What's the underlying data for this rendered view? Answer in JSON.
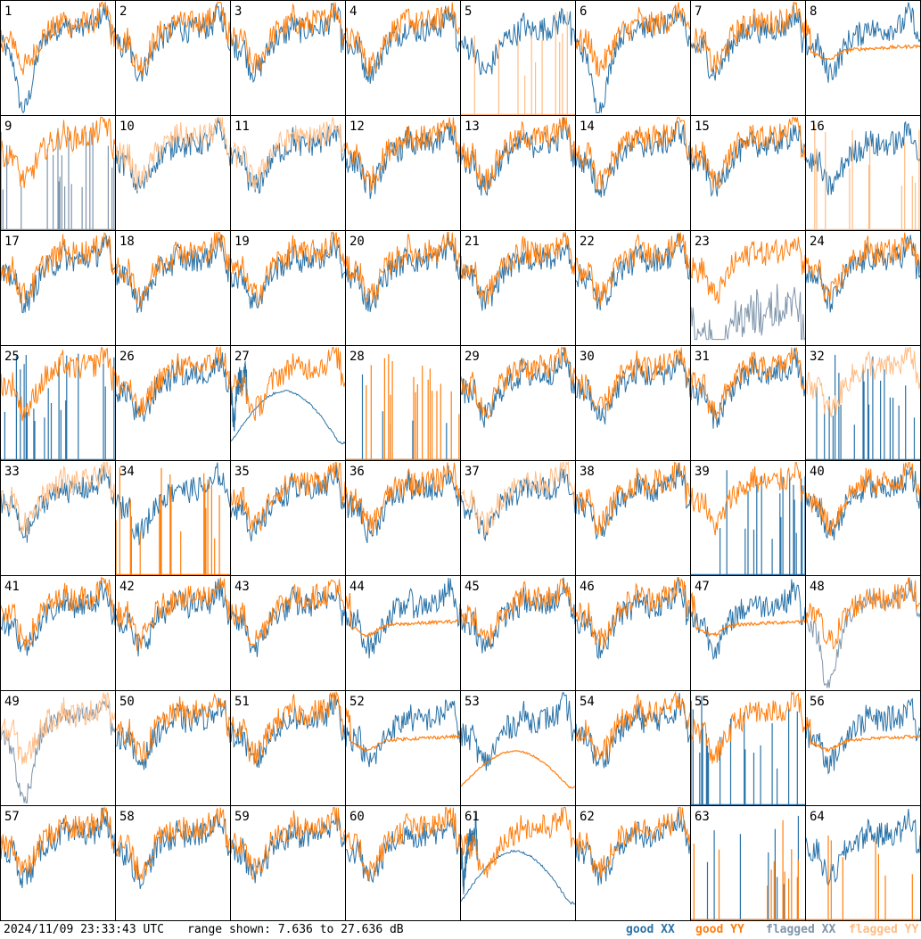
{
  "chart_data": {
    "type": "line",
    "grid": {
      "rows": 8,
      "cols": 8
    },
    "panels": [
      {
        "label": "1",
        "xx": "good",
        "yy": "good",
        "shape": "dip"
      },
      {
        "label": "2",
        "xx": "good",
        "yy": "good",
        "shape": "normal"
      },
      {
        "label": "3",
        "xx": "good",
        "yy": "good",
        "shape": "normal"
      },
      {
        "label": "4",
        "xx": "good",
        "yy": "good",
        "shape": "normal"
      },
      {
        "label": "5",
        "xx": "good",
        "yy": "flagged",
        "shape": "spikes_yy"
      },
      {
        "label": "6",
        "xx": "good",
        "yy": "good",
        "shape": "dip"
      },
      {
        "label": "7",
        "xx": "good",
        "yy": "good",
        "shape": "normal"
      },
      {
        "label": "8",
        "xx": "good",
        "yy": "good",
        "shape": "smooth_yy"
      },
      {
        "label": "9",
        "xx": "flagged",
        "yy": "good",
        "shape": "spikes_xx"
      },
      {
        "label": "10",
        "xx": "good",
        "yy": "flagged",
        "shape": "normal"
      },
      {
        "label": "11",
        "xx": "good",
        "yy": "flagged",
        "shape": "normal"
      },
      {
        "label": "12",
        "xx": "good",
        "yy": "good",
        "shape": "normal"
      },
      {
        "label": "13",
        "xx": "good",
        "yy": "good",
        "shape": "normal"
      },
      {
        "label": "14",
        "xx": "good",
        "yy": "good",
        "shape": "normal"
      },
      {
        "label": "15",
        "xx": "good",
        "yy": "good",
        "shape": "normal"
      },
      {
        "label": "16",
        "xx": "good",
        "yy": "flagged",
        "shape": "spikes_yy"
      },
      {
        "label": "17",
        "xx": "good",
        "yy": "good",
        "shape": "normal"
      },
      {
        "label": "18",
        "xx": "good",
        "yy": "good",
        "shape": "normal"
      },
      {
        "label": "19",
        "xx": "good",
        "yy": "good",
        "shape": "normal"
      },
      {
        "label": "20",
        "xx": "good",
        "yy": "good",
        "shape": "normal"
      },
      {
        "label": "21",
        "xx": "good",
        "yy": "good",
        "shape": "normal"
      },
      {
        "label": "22",
        "xx": "good",
        "yy": "good",
        "shape": "normal"
      },
      {
        "label": "23",
        "xx": "flagged",
        "yy": "good",
        "shape": "noisy_xx"
      },
      {
        "label": "24",
        "xx": "good",
        "yy": "good",
        "shape": "normal"
      },
      {
        "label": "25",
        "xx": "good",
        "yy": "good",
        "shape": "spikes_xx"
      },
      {
        "label": "26",
        "xx": "good",
        "yy": "good",
        "shape": "normal"
      },
      {
        "label": "27",
        "xx": "good",
        "yy": "good",
        "shape": "arc_xx"
      },
      {
        "label": "28",
        "xx": "good",
        "yy": "good",
        "shape": "dead"
      },
      {
        "label": "29",
        "xx": "good",
        "yy": "good",
        "shape": "normal"
      },
      {
        "label": "30",
        "xx": "good",
        "yy": "good",
        "shape": "normal"
      },
      {
        "label": "31",
        "xx": "good",
        "yy": "good",
        "shape": "normal"
      },
      {
        "label": "32",
        "xx": "good",
        "yy": "flagged",
        "shape": "spikes_xx"
      },
      {
        "label": "33",
        "xx": "good",
        "yy": "flagged",
        "shape": "normal"
      },
      {
        "label": "34",
        "xx": "good",
        "yy": "good",
        "shape": "spikes_yy"
      },
      {
        "label": "35",
        "xx": "good",
        "yy": "good",
        "shape": "normal"
      },
      {
        "label": "36",
        "xx": "good",
        "yy": "good",
        "shape": "normal"
      },
      {
        "label": "37",
        "xx": "good",
        "yy": "flagged",
        "shape": "normal"
      },
      {
        "label": "38",
        "xx": "good",
        "yy": "good",
        "shape": "normal"
      },
      {
        "label": "39",
        "xx": "good",
        "yy": "good",
        "shape": "spikes_xx"
      },
      {
        "label": "40",
        "xx": "good",
        "yy": "good",
        "shape": "normal"
      },
      {
        "label": "41",
        "xx": "good",
        "yy": "good",
        "shape": "normal"
      },
      {
        "label": "42",
        "xx": "good",
        "yy": "good",
        "shape": "normal"
      },
      {
        "label": "43",
        "xx": "good",
        "yy": "good",
        "shape": "normal"
      },
      {
        "label": "44",
        "xx": "good",
        "yy": "good",
        "shape": "smooth_yy"
      },
      {
        "label": "45",
        "xx": "good",
        "yy": "good",
        "shape": "normal"
      },
      {
        "label": "46",
        "xx": "good",
        "yy": "good",
        "shape": "normal"
      },
      {
        "label": "47",
        "xx": "good",
        "yy": "good",
        "shape": "smooth_yy"
      },
      {
        "label": "48",
        "xx": "flagged",
        "yy": "good",
        "shape": "dip"
      },
      {
        "label": "49",
        "xx": "flagged",
        "yy": "flagged",
        "shape": "dip"
      },
      {
        "label": "50",
        "xx": "good",
        "yy": "good",
        "shape": "normal"
      },
      {
        "label": "51",
        "xx": "good",
        "yy": "good",
        "shape": "normal"
      },
      {
        "label": "52",
        "xx": "good",
        "yy": "good",
        "shape": "smooth_yy"
      },
      {
        "label": "53",
        "xx": "good",
        "yy": "good",
        "shape": "arc_yy"
      },
      {
        "label": "54",
        "xx": "good",
        "yy": "good",
        "shape": "normal"
      },
      {
        "label": "55",
        "xx": "good",
        "yy": "good",
        "shape": "spikes_xx"
      },
      {
        "label": "56",
        "xx": "good",
        "yy": "good",
        "shape": "smooth_yy"
      },
      {
        "label": "57",
        "xx": "good",
        "yy": "good",
        "shape": "normal"
      },
      {
        "label": "58",
        "xx": "good",
        "yy": "good",
        "shape": "normal"
      },
      {
        "label": "59",
        "xx": "good",
        "yy": "good",
        "shape": "normal"
      },
      {
        "label": "60",
        "xx": "good",
        "yy": "good",
        "shape": "normal"
      },
      {
        "label": "61",
        "xx": "good",
        "yy": "good",
        "shape": "arc_xx"
      },
      {
        "label": "62",
        "xx": "good",
        "yy": "good",
        "shape": "normal"
      },
      {
        "label": "63",
        "xx": "good",
        "yy": "good",
        "shape": "dead"
      },
      {
        "label": "64",
        "xx": "good",
        "yy": "good",
        "shape": "spikes_yy"
      }
    ],
    "legend": [
      {
        "key": "good_xx",
        "label": "good XX",
        "color": "#2a73a8"
      },
      {
        "key": "good_yy",
        "label": "good YY",
        "color": "#ff7f0e"
      },
      {
        "key": "flagged_xx",
        "label": "flagged XX",
        "color": "#7f95ab"
      },
      {
        "key": "flagged_yy",
        "label": "flagged YY",
        "color": "#ffbd85"
      }
    ],
    "ylim": [
      7.636,
      27.636
    ],
    "ylim_unit": "dB",
    "legend_placement": "bottom-right"
  },
  "footer": {
    "timestamp": "2024/11/09 23:33:43 UTC",
    "range_text": "range shown: 7.636 to 27.636 dB",
    "legend_good_xx": "good XX",
    "legend_good_yy": "good YY",
    "legend_flagged_xx": "flagged XX",
    "legend_flagged_yy": "flagged YY"
  }
}
